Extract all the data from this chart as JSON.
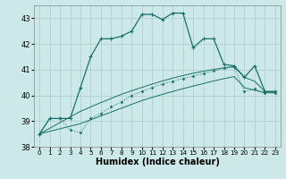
{
  "xlabel": "Humidex (Indice chaleur)",
  "background_color": "#cce8e8",
  "grid_color": "#aacccc",
  "line_color": "#1a7068",
  "x_values": [
    0,
    1,
    2,
    3,
    4,
    5,
    6,
    7,
    8,
    9,
    10,
    11,
    12,
    13,
    14,
    15,
    16,
    17,
    18,
    19,
    20,
    21,
    22,
    23
  ],
  "line_main": [
    38.5,
    39.1,
    39.1,
    39.1,
    40.3,
    41.5,
    42.2,
    42.2,
    42.3,
    42.5,
    43.15,
    43.15,
    42.95,
    43.2,
    43.2,
    41.85,
    42.2,
    42.2,
    41.2,
    41.15,
    40.7,
    41.15,
    40.15,
    40.15
  ],
  "line_dotted": [
    38.5,
    39.1,
    39.1,
    38.65,
    38.55,
    39.1,
    39.3,
    39.55,
    39.75,
    40.0,
    40.15,
    40.3,
    40.45,
    40.55,
    40.65,
    40.75,
    40.85,
    40.95,
    41.05,
    41.1,
    40.15,
    40.25,
    40.1,
    40.1
  ],
  "line_straight1": [
    38.5,
    38.72,
    38.94,
    39.16,
    39.38,
    39.55,
    39.72,
    39.88,
    40.04,
    40.18,
    40.31,
    40.44,
    40.56,
    40.67,
    40.77,
    40.86,
    40.94,
    41.01,
    41.07,
    41.12,
    40.7,
    40.55,
    40.15,
    40.15
  ],
  "line_straight2": [
    38.5,
    38.6,
    38.7,
    38.8,
    38.9,
    39.05,
    39.2,
    39.35,
    39.5,
    39.65,
    39.8,
    39.92,
    40.04,
    40.15,
    40.26,
    40.36,
    40.46,
    40.56,
    40.65,
    40.73,
    40.3,
    40.2,
    40.1,
    40.1
  ],
  "ylim": [
    38,
    43.5
  ],
  "xlim": [
    -0.5,
    23.5
  ],
  "yticks": [
    38,
    39,
    40,
    41,
    42,
    43
  ],
  "xticks": [
    0,
    1,
    2,
    3,
    4,
    5,
    6,
    7,
    8,
    9,
    10,
    11,
    12,
    13,
    14,
    15,
    16,
    17,
    18,
    19,
    20,
    21,
    22,
    23
  ],
  "label_fontsize": 7,
  "tick_fontsize": 6
}
